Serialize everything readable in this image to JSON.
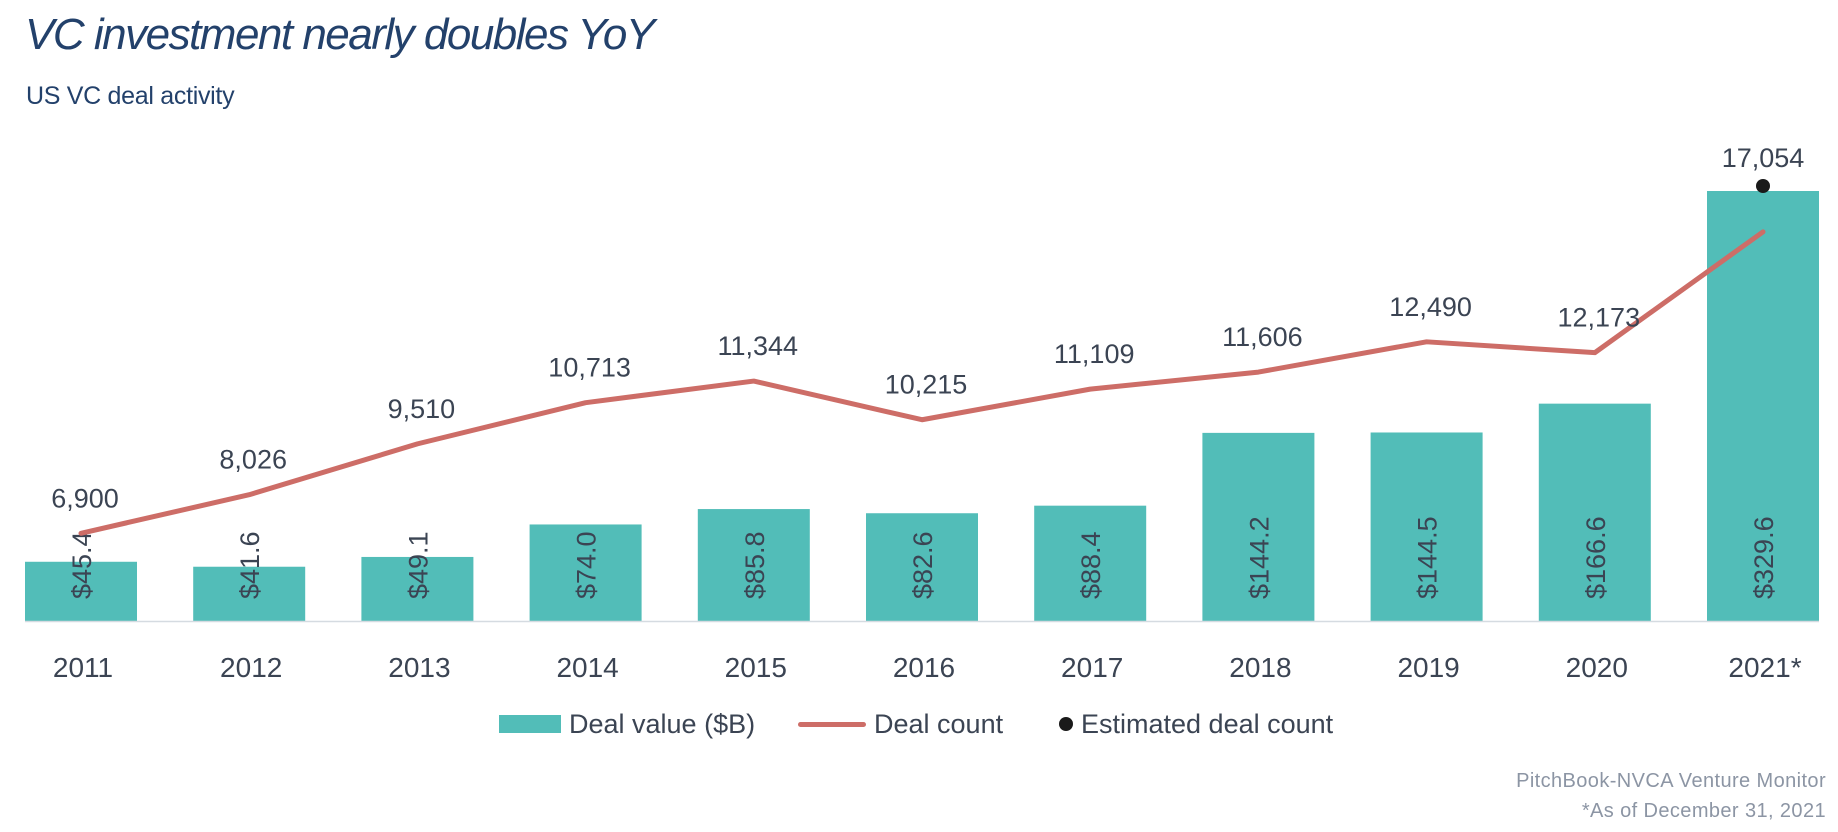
{
  "title": "VC investment nearly doubles YoY",
  "subtitle": "US VC deal activity",
  "source": "PitchBook-NVCA Venture Monitor",
  "note": "*As of December 31, 2021",
  "legend": {
    "deal_value": "Deal value ($B)",
    "deal_count": "Deal count",
    "estimated": "Estimated deal count"
  },
  "colors": {
    "bar": "#52bdb8",
    "line": "#cd6d67",
    "dot": "#1a1a1a",
    "title": "#23416b",
    "text": "#3b4453"
  },
  "chart_data": {
    "type": "bar",
    "categories": [
      "2011",
      "2012",
      "2013",
      "2014",
      "2015",
      "2016",
      "2017",
      "2018",
      "2019",
      "2020",
      "2021*"
    ],
    "series": [
      {
        "name": "Deal value ($B)",
        "type": "bar",
        "values": [
          45.4,
          41.6,
          49.1,
          74.0,
          85.8,
          82.6,
          88.4,
          144.2,
          144.5,
          166.6,
          329.6
        ],
        "labels": [
          "$45.4",
          "$41.6",
          "$49.1",
          "$74.0",
          "$85.8",
          "$82.6",
          "$88.4",
          "$144.2",
          "$144.5",
          "$166.6",
          "$329.6"
        ]
      },
      {
        "name": "Deal count",
        "type": "line",
        "values": [
          6900,
          8026,
          9510,
          10713,
          11344,
          10215,
          11109,
          11606,
          12490,
          12173,
          15700
        ],
        "labels": [
          "6,900",
          "8,026",
          "9,510",
          "10,713",
          "11,344",
          "10,215",
          "11,109",
          "11,606",
          "12,490",
          "12,173",
          ""
        ]
      },
      {
        "name": "Estimated deal count",
        "type": "scatter",
        "values": [
          null,
          null,
          null,
          null,
          null,
          null,
          null,
          null,
          null,
          null,
          17054
        ],
        "labels": [
          "",
          "",
          "",
          "",
          "",
          "",
          "",
          "",
          "",
          "",
          "17,054"
        ]
      }
    ],
    "bar_ylim": [
      0,
      329.6
    ],
    "line_ylim": [
      0,
      17054
    ],
    "legend_position": "bottom",
    "grid": false
  }
}
